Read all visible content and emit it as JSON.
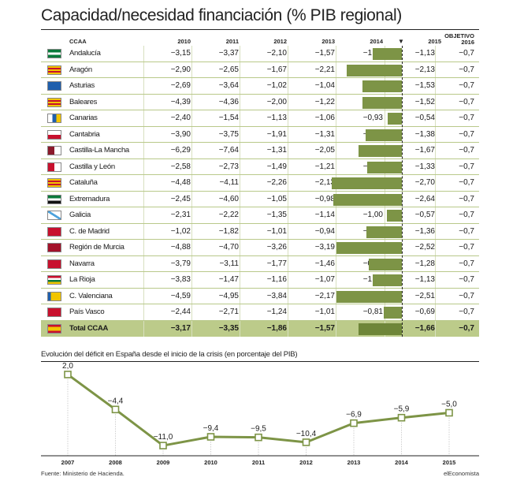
{
  "title": "Capacidad/necesidad financiación (% PIB regional)",
  "table": {
    "header_region": "CCAA",
    "years": [
      "2010",
      "2011",
      "2012",
      "2013",
      "2014"
    ],
    "year_2015": "2015",
    "objective_label": "OBJETIVO",
    "objective_year": "2016",
    "rows": [
      {
        "region": "Andalucía",
        "flag": "andalucia-flag-icon",
        "v": [
          "−3,15",
          "−3,37",
          "−2,10",
          "−1,57",
          "−1,35"
        ],
        "v2015": "−1,13",
        "v2015_num": -1.13,
        "obj": "−0,7"
      },
      {
        "region": "Aragón",
        "flag": "aragon-flag-icon",
        "v": [
          "−2,90",
          "−2,65",
          "−1,67",
          "−2,21",
          "−1,80"
        ],
        "v2015": "−2,13",
        "v2015_num": -2.13,
        "obj": "−0,7"
      },
      {
        "region": "Asturias",
        "flag": "asturias-flag-icon",
        "v": [
          "−2,69",
          "−3,64",
          "−1,02",
          "−1,04",
          "−1,29"
        ],
        "v2015": "−1,53",
        "v2015_num": -1.53,
        "obj": "−0,7"
      },
      {
        "region": "Baleares",
        "flag": "baleares-flag-icon",
        "v": [
          "−4,39",
          "−4,36",
          "−2,00",
          "−1,22",
          "−1,75"
        ],
        "v2015": "−1,52",
        "v2015_num": -1.52,
        "obj": "−0,7"
      },
      {
        "region": "Canarias",
        "flag": "canarias-flag-icon",
        "v": [
          "−2,40",
          "−1,54",
          "−1,13",
          "−1,06",
          "−0,93"
        ],
        "v2015": "−0,54",
        "v2015_num": -0.54,
        "obj": "−0,7"
      },
      {
        "region": "Cantabria",
        "flag": "cantabria-flag-icon",
        "v": [
          "−3,90",
          "−3,75",
          "−1,91",
          "−1,31",
          "−1,67"
        ],
        "v2015": "−1,38",
        "v2015_num": -1.38,
        "obj": "−0,7"
      },
      {
        "region": "Castilla-La Mancha",
        "flag": "castilla-la-mancha-flag-icon",
        "v": [
          "−6,29",
          "−7,64",
          "−1,31",
          "−2,05",
          "−1,83"
        ],
        "v2015": "−1,67",
        "v2015_num": -1.67,
        "obj": "−0,7"
      },
      {
        "region": "Castilla y León",
        "flag": "castilla-y-leon-flag-icon",
        "v": [
          "−2,58",
          "−2,73",
          "−1,49",
          "−1,21",
          "−1,14"
        ],
        "v2015": "−1,33",
        "v2015_num": -1.33,
        "obj": "−0,7"
      },
      {
        "region": "Cataluña",
        "flag": "cataluna-flag-icon",
        "v": [
          "−4,48",
          "−4,11",
          "−2,26",
          "−2,13",
          "−2,74"
        ],
        "v2015": "−2,70",
        "v2015_num": -2.7,
        "obj": "−0,7"
      },
      {
        "region": "Extremadura",
        "flag": "extremadura-flag-icon",
        "v": [
          "−2,45",
          "−4,60",
          "−1,05",
          "−0,98",
          "−2,51"
        ],
        "v2015": "−2,64",
        "v2015_num": -2.64,
        "obj": "−0,7"
      },
      {
        "region": "Galicia",
        "flag": "galicia-flag-icon",
        "v": [
          "−2,31",
          "−2,22",
          "−1,35",
          "−1,14",
          "−1,00"
        ],
        "v2015": "−0,57",
        "v2015_num": -0.57,
        "obj": "−0,7"
      },
      {
        "region": "C. de Madrid",
        "flag": "madrid-flag-icon",
        "v": [
          "−1,02",
          "−1,82",
          "−1,01",
          "−0,94",
          "−1,37"
        ],
        "v2015": "−1,36",
        "v2015_num": -1.36,
        "obj": "−0,7"
      },
      {
        "region": "Región de Murcia",
        "flag": "murcia-flag-icon",
        "v": [
          "−4,88",
          "−4,70",
          "−3,26",
          "−3,19",
          "−2,87"
        ],
        "v2015": "−2,52",
        "v2015_num": -2.52,
        "obj": "−0,7"
      },
      {
        "region": "Navarra",
        "flag": "navarra-flag-icon",
        "v": [
          "−3,79",
          "−3,11",
          "−1,77",
          "−1,46",
          "−0,85"
        ],
        "v2015": "−1,28",
        "v2015_num": -1.28,
        "obj": "−0,7"
      },
      {
        "region": "La Rioja",
        "flag": "la-rioja-flag-icon",
        "v": [
          "−3,83",
          "−1,47",
          "−1,16",
          "−1,07",
          "−1,26"
        ],
        "v2015": "−1,13",
        "v2015_num": -1.13,
        "obj": "−0,7"
      },
      {
        "region": "C. Valenciana",
        "flag": "valenciana-flag-icon",
        "v": [
          "−4,59",
          "−4,95",
          "−3,84",
          "−2,17",
          "−2,49"
        ],
        "v2015": "−2,51",
        "v2015_num": -2.51,
        "obj": "−0,7"
      },
      {
        "region": "País Vasco",
        "flag": "pais-vasco-flag-icon",
        "v": [
          "−2,44",
          "−2,71",
          "−1,24",
          "−1,01",
          "−0,81"
        ],
        "v2015": "−0,69",
        "v2015_num": -0.69,
        "obj": "−0,7"
      },
      {
        "region": "Total CCAA",
        "flag": "spain-flag-icon",
        "v": [
          "−3,17",
          "−3,35",
          "−1,86",
          "−1,57",
          "−1,75"
        ],
        "v2015": "−1,66",
        "v2015_num": -1.66,
        "obj": "−0,7",
        "total": true
      }
    ]
  },
  "colors": {
    "bar": "#7d9446",
    "line": "#7d9446",
    "row_border": "#b9c98a",
    "total_bg": "#bccb8a"
  },
  "line_chart": {
    "subtitle": "Evolución del déficit en España desde el inicio de la crisis (en porcentaje del PIB)",
    "x": [
      "2007",
      "2008",
      "2009",
      "2010",
      "2011",
      "2012",
      "2013",
      "2014",
      "2015"
    ],
    "y": [
      2.0,
      -4.4,
      -11.0,
      -9.4,
      -9.5,
      -10.4,
      -6.9,
      -5.9,
      -5.0
    ],
    "labels": [
      "2,0",
      "−4,4",
      "−11,0",
      "−9,4",
      "−9,5",
      "−10,4",
      "−6,9",
      "−5,9",
      "−5,0"
    ]
  },
  "chart_data": [
    {
      "type": "table",
      "title": "Capacidad/necesidad financiación (% PIB regional)",
      "columns": [
        "CCAA",
        "2010",
        "2011",
        "2012",
        "2013",
        "2014",
        "2015",
        "OBJETIVO 2016"
      ],
      "bar_column": "2015",
      "bar_values": [
        -1.13,
        -2.13,
        -1.53,
        -1.52,
        -0.54,
        -1.38,
        -1.67,
        -1.33,
        -2.7,
        -2.64,
        -0.57,
        -1.36,
        -2.52,
        -1.28,
        -1.13,
        -2.51,
        -0.69,
        -1.66
      ],
      "xlim": [
        -3,
        0
      ]
    },
    {
      "type": "line",
      "title": "Evolución del déficit en España desde el inicio de la crisis (en porcentaje del PIB)",
      "x": [
        "2007",
        "2008",
        "2009",
        "2010",
        "2011",
        "2012",
        "2013",
        "2014",
        "2015"
      ],
      "series": [
        {
          "values": [
            2.0,
            -4.4,
            -11.0,
            -9.4,
            -9.5,
            -10.4,
            -6.9,
            -5.9,
            -5.0
          ]
        }
      ],
      "ylim": [
        -12,
        3
      ]
    }
  ],
  "footer": {
    "source": "Fuente: Ministerio de Hacienda.",
    "brand": "elEconomista"
  }
}
